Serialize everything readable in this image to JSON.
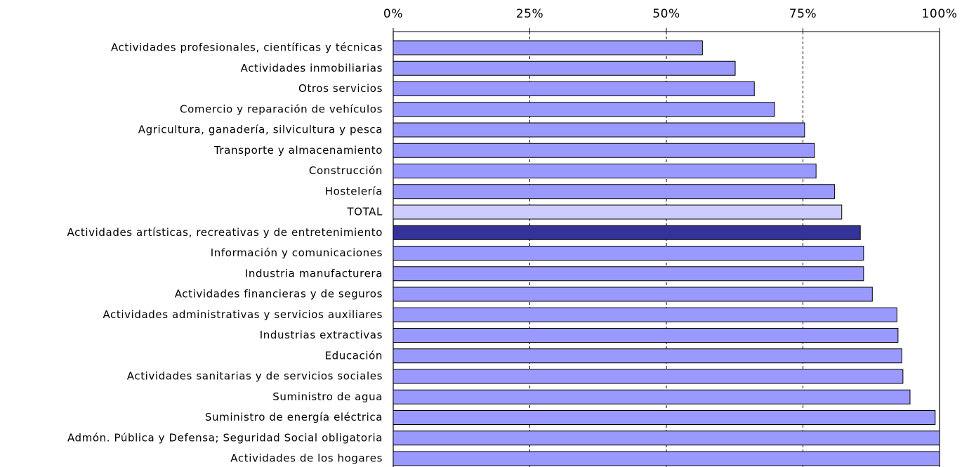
{
  "chart_data": {
    "type": "barh",
    "categories": [
      "Actividades profesionales, científicas y técnicas",
      "Actividades inmobiliarias",
      "Otros servicios",
      "Comercio y reparación de vehículos",
      "Agricultura, ganadería, silvicultura y pesca",
      "Transporte y almacenamiento",
      "Construcción",
      "Hostelería",
      "TOTAL",
      "Actividades artísticas, recreativas y de entretenimiento",
      "Información y comunicaciones",
      "Industria manufacturera",
      "Actividades financieras y de seguros",
      "Actividades administrativas y servicios auxiliares",
      "Industrias extractivas",
      "Educación",
      "Actividades sanitarias y de servicios sociales",
      "Suministro de agua",
      "Suministro de energía eléctrica",
      "Admón. Pública y Defensa; Seguridad Social obligatoria",
      "Actividades de los hogares"
    ],
    "values": [
      56.6,
      62.6,
      66.1,
      69.8,
      75.3,
      77.1,
      77.4,
      80.8,
      82.1,
      85.5,
      86.1,
      86.1,
      87.7,
      92.2,
      92.4,
      93.1,
      93.3,
      94.6,
      99.2,
      100,
      100
    ],
    "colors": [
      "#9999ff",
      "#9999ff",
      "#9999ff",
      "#9999ff",
      "#9999ff",
      "#9999ff",
      "#9999ff",
      "#9999ff",
      "#ccccff",
      "#333399",
      "#9999ff",
      "#9999ff",
      "#9999ff",
      "#9999ff",
      "#9999ff",
      "#9999ff",
      "#9999ff",
      "#9999ff",
      "#9999ff",
      "#9999ff",
      "#9999ff"
    ],
    "xlim": [
      0,
      100
    ],
    "xticks": [
      {
        "value": 0,
        "label": "0%"
      },
      {
        "value": 25,
        "label": "25%"
      },
      {
        "value": 50,
        "label": "50%"
      },
      {
        "value": 75,
        "label": "75%"
      },
      {
        "value": 100,
        "label": "100%"
      }
    ],
    "grid": true
  }
}
